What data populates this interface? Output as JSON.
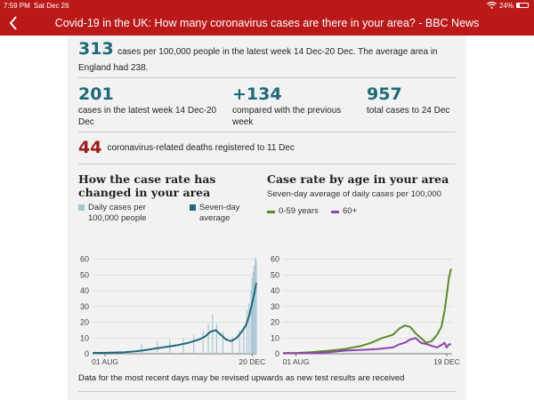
{
  "status": {
    "time": "7:59 PM",
    "date": "Sat Dec 26",
    "battery": "24%",
    "battery_level": 0.24
  },
  "header": {
    "title": "Covid-19 in the UK: How many coronavirus cases are there in your area? - BBC News"
  },
  "stats": {
    "rate": {
      "value": "313",
      "text": "cases per 100,000 people in the latest week 14 Dec-20 Dec. The average area in England had 238."
    },
    "cases_week": {
      "value": "201",
      "text": "cases in the latest week 14 Dec-20 Dec"
    },
    "change": {
      "value": "+134",
      "text": "compared with the previous week"
    },
    "total": {
      "value": "957",
      "text": "total cases to 24 Dec"
    },
    "deaths": {
      "value": "44",
      "text": "coronavirus-related deaths registered to 11 Dec"
    }
  },
  "chart_data": [
    {
      "type": "bar",
      "title": "How the case rate has changed in your area",
      "legend": [
        "Daily cases per 100,000 people",
        "Seven-day average"
      ],
      "colors": {
        "bars": "#a6c6d4",
        "line": "#1d6a7c"
      },
      "xticks": [
        "01 AUG",
        "20 DEC"
      ],
      "yticks": [
        0,
        10,
        20,
        30,
        40,
        50,
        60
      ],
      "ylim": [
        0,
        62
      ],
      "x_range": [
        "2020-07-20",
        "2020-12-24"
      ],
      "series": [
        {
          "name": "Seven-day average",
          "x": [
            "2020-07-20",
            "2020-08-01",
            "2020-08-10",
            "2020-08-20",
            "2020-08-30",
            "2020-09-10",
            "2020-09-20",
            "2020-09-30",
            "2020-10-10",
            "2020-10-20",
            "2020-10-30",
            "2020-11-05",
            "2020-11-10",
            "2020-11-15",
            "2020-11-20",
            "2020-11-25",
            "2020-11-30",
            "2020-12-05",
            "2020-12-10",
            "2020-12-14",
            "2020-12-17",
            "2020-12-20",
            "2020-12-22",
            "2020-12-24"
          ],
          "values": [
            0.5,
            0.6,
            0.8,
            1.0,
            1.5,
            2.5,
            3.5,
            4.5,
            5.5,
            7.0,
            9.0,
            11.0,
            14.0,
            15.0,
            12.0,
            9.0,
            8.0,
            10.0,
            14.0,
            18.0,
            24.0,
            32.0,
            38.0,
            45.0
          ]
        }
      ],
      "bars": {
        "x": [
          "2020-09-05",
          "2020-09-20",
          "2020-10-02",
          "2020-10-15",
          "2020-10-25",
          "2020-11-03",
          "2020-11-08",
          "2020-11-12",
          "2020-11-16",
          "2020-11-22",
          "2020-12-01",
          "2020-12-08",
          "2020-12-12",
          "2020-12-15",
          "2020-12-17",
          "2020-12-19",
          "2020-12-20",
          "2020-12-21",
          "2020-12-22",
          "2020-12-23",
          "2020-12-24"
        ],
        "values": [
          6,
          8,
          9,
          10,
          12,
          15,
          19,
          25,
          19,
          14,
          11,
          15,
          18,
          28,
          32,
          40,
          48,
          52,
          56,
          61,
          59
        ]
      }
    },
    {
      "type": "line",
      "title": "Case rate by age in your area",
      "subtitle": "Seven-day average of daily cases per 100,000",
      "xticks": [
        "01 AUG",
        "19 DEC"
      ],
      "yticks": [
        0,
        10,
        20,
        30,
        40,
        50,
        60
      ],
      "ylim": [
        0,
        62
      ],
      "x_range": [
        "2020-07-20",
        "2020-12-24"
      ],
      "series": [
        {
          "name": "0-59 years",
          "color": "#588c25",
          "x": [
            "2020-07-20",
            "2020-08-01",
            "2020-08-15",
            "2020-09-01",
            "2020-09-15",
            "2020-10-01",
            "2020-10-10",
            "2020-10-20",
            "2020-10-30",
            "2020-11-05",
            "2020-11-10",
            "2020-11-15",
            "2020-11-20",
            "2020-11-25",
            "2020-11-30",
            "2020-12-05",
            "2020-12-10",
            "2020-12-14",
            "2020-12-17",
            "2020-12-19",
            "2020-12-21",
            "2020-12-23"
          ],
          "values": [
            0.5,
            0.5,
            1,
            2,
            3,
            5,
            7,
            10,
            12,
            16,
            18,
            17,
            13,
            10,
            7,
            8,
            12,
            17,
            27,
            37,
            48,
            54
          ]
        },
        {
          "name": "60+",
          "color": "#8e44ad",
          "x": [
            "2020-07-20",
            "2020-08-01",
            "2020-08-15",
            "2020-09-01",
            "2020-09-15",
            "2020-10-01",
            "2020-10-15",
            "2020-10-30",
            "2020-11-05",
            "2020-11-10",
            "2020-11-15",
            "2020-11-20",
            "2020-11-25",
            "2020-12-01",
            "2020-12-05",
            "2020-12-10",
            "2020-12-15",
            "2020-12-17",
            "2020-12-19",
            "2020-12-21",
            "2020-12-23"
          ],
          "values": [
            0.3,
            0.3,
            0.5,
            1,
            2,
            2.5,
            3,
            4,
            6,
            7,
            9,
            10,
            7,
            6,
            5,
            4,
            6,
            7,
            4,
            6,
            6
          ]
        }
      ]
    }
  ],
  "footnote": "Data for the most recent days may be revised upwards as new test results are received"
}
